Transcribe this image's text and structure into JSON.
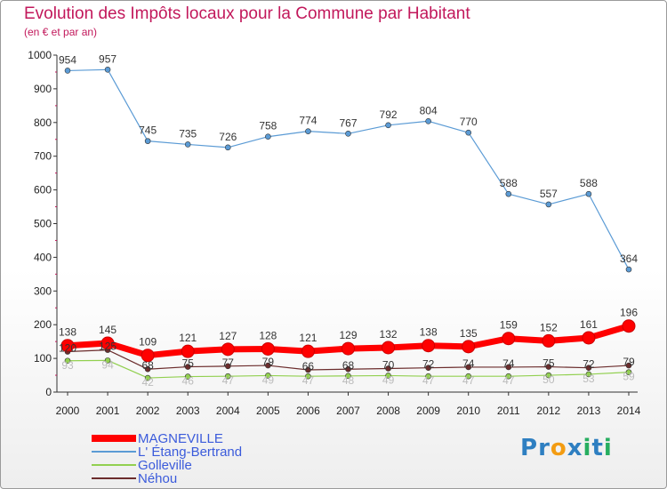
{
  "header": {
    "title": "Evolution des Impôts locaux pour la Commune par Habitant",
    "subtitle": "(en € et par an)"
  },
  "logo": {
    "text": "Proxiti",
    "letters": [
      {
        "ch": "P",
        "color": "#2e7fc1"
      },
      {
        "ch": "r",
        "color": "#2e7fc1"
      },
      {
        "ch": "o",
        "color": "#f39c12"
      },
      {
        "ch": "x",
        "color": "#2e7fc1"
      },
      {
        "ch": "i",
        "color": "#27ae60"
      },
      {
        "ch": "t",
        "color": "#2e7fc1"
      },
      {
        "ch": "i",
        "color": "#27ae60"
      }
    ]
  },
  "chart_data": {
    "type": "line",
    "title": "Evolution des Impôts locaux pour la Commune par Habitant",
    "subtitle": "(en € et par an)",
    "categories": [
      "2000",
      "2001",
      "2002",
      "2003",
      "2004",
      "2005",
      "2006",
      "2007",
      "2008",
      "2009",
      "2010",
      "2011",
      "2012",
      "2013",
      "2014"
    ],
    "ylim": [
      0,
      1000
    ],
    "yticks": [
      0,
      100,
      200,
      300,
      400,
      500,
      600,
      700,
      800,
      900,
      1000
    ],
    "grid": false,
    "legend_position": "bottom-left",
    "series": [
      {
        "name": "MAGNEVILLE",
        "color": "#ff0000",
        "values": [
          138,
          145,
          109,
          121,
          127,
          128,
          121,
          129,
          132,
          138,
          135,
          159,
          152,
          161,
          196
        ]
      },
      {
        "name": "L' Étang-Bertrand",
        "color": "#5b9bd5",
        "values": [
          954,
          957,
          745,
          735,
          726,
          758,
          774,
          767,
          792,
          804,
          770,
          588,
          557,
          588,
          364
        ]
      },
      {
        "name": "Golleville",
        "color": "#92d050",
        "values": [
          93,
          94,
          42,
          46,
          47,
          49,
          47,
          48,
          49,
          47,
          47,
          47,
          50,
          53,
          59
        ]
      },
      {
        "name": "Néhou",
        "color": "#6b2c2c",
        "values": [
          120,
          125,
          68,
          75,
          77,
          79,
          66,
          68,
          70,
          72,
          74,
          74,
          75,
          72,
          79
        ]
      }
    ]
  }
}
